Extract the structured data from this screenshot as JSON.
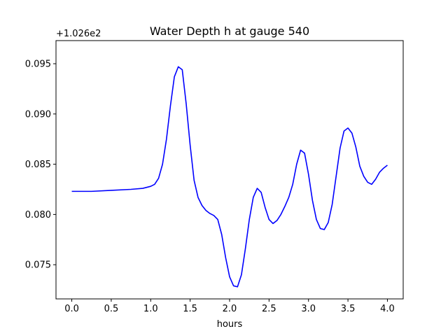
{
  "chart_data": {
    "type": "line",
    "title": "Water Depth h at gauge 540",
    "xlabel": "hours",
    "ylabel": "",
    "offset_label": "+1.026e2",
    "xlim": [
      -0.2,
      4.2
    ],
    "ylim": [
      0.0716,
      0.0973
    ],
    "xticks": [
      0.0,
      0.5,
      1.0,
      1.5,
      2.0,
      2.5,
      3.0,
      3.5,
      4.0
    ],
    "xtick_labels": [
      "0.0",
      "0.5",
      "1.0",
      "1.5",
      "2.0",
      "2.5",
      "3.0",
      "3.5",
      "4.0"
    ],
    "yticks": [
      0.075,
      0.08,
      0.085,
      0.09,
      0.095
    ],
    "ytick_labels": [
      "0.075",
      "0.080",
      "0.085",
      "0.090",
      "0.095"
    ],
    "grid": false,
    "series": [
      {
        "color": "#0000ff",
        "x": [
          0.0,
          0.25,
          0.5,
          0.75,
          0.9,
          1.0,
          1.05,
          1.1,
          1.15,
          1.2,
          1.25,
          1.3,
          1.35,
          1.4,
          1.45,
          1.5,
          1.55,
          1.6,
          1.65,
          1.7,
          1.75,
          1.8,
          1.85,
          1.9,
          1.95,
          2.0,
          2.05,
          2.1,
          2.15,
          2.2,
          2.25,
          2.3,
          2.35,
          2.4,
          2.45,
          2.5,
          2.55,
          2.6,
          2.65,
          2.7,
          2.75,
          2.8,
          2.85,
          2.9,
          2.95,
          3.0,
          3.05,
          3.1,
          3.15,
          3.2,
          3.25,
          3.3,
          3.35,
          3.4,
          3.45,
          3.5,
          3.55,
          3.6,
          3.65,
          3.7,
          3.75,
          3.8,
          3.85,
          3.9,
          3.95,
          4.0
        ],
        "y": [
          0.0823,
          0.0823,
          0.0824,
          0.0825,
          0.0826,
          0.0828,
          0.083,
          0.0836,
          0.085,
          0.0875,
          0.0908,
          0.0937,
          0.0947,
          0.0944,
          0.091,
          0.0869,
          0.0834,
          0.0817,
          0.0809,
          0.0804,
          0.0801,
          0.0799,
          0.0795,
          0.078,
          0.0757,
          0.0738,
          0.0729,
          0.0728,
          0.074,
          0.0766,
          0.0795,
          0.0817,
          0.0826,
          0.0822,
          0.0807,
          0.0795,
          0.0791,
          0.0794,
          0.08,
          0.0808,
          0.0817,
          0.083,
          0.085,
          0.0864,
          0.0861,
          0.084,
          0.0814,
          0.0795,
          0.0786,
          0.0785,
          0.0792,
          0.081,
          0.0838,
          0.0866,
          0.0883,
          0.0886,
          0.0881,
          0.0867,
          0.0848,
          0.0838,
          0.0832,
          0.083,
          0.0835,
          0.0842,
          0.0846,
          0.0849
        ]
      }
    ]
  }
}
